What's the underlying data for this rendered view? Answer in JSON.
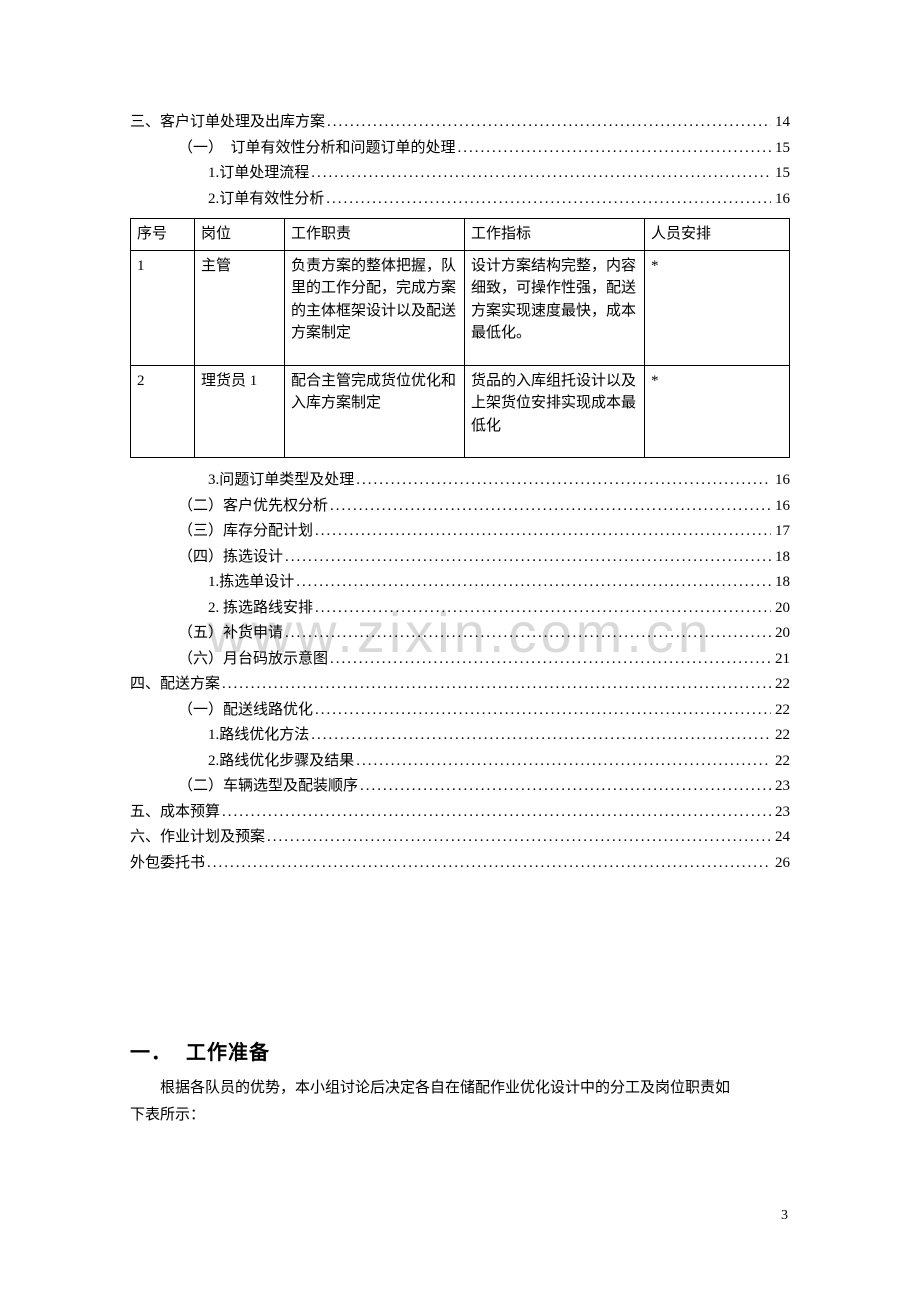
{
  "watermark": "www.zixin.com.cn",
  "toc_top": [
    {
      "indent": 0,
      "text": "三、客户订单处理及出库方案",
      "page": "14"
    },
    {
      "indent": 1,
      "text": "（一）　订单有效性分析和问题订单的处理 ",
      "page": "15"
    },
    {
      "indent": 2,
      "text": "1.订单处理流程",
      "page": "15"
    },
    {
      "indent": 2,
      "text": "2.订单有效性分析",
      "page": "16"
    }
  ],
  "table": {
    "columns": [
      "序号",
      "岗位",
      "工作职责",
      "工作指标",
      "人员安排"
    ],
    "rows": [
      {
        "seq": "1",
        "position": "主管",
        "duty": "负责方案的整体把握，队里的工作分配，完成方案的主体框架设计以及配送方案制定",
        "metric": "设计方案结构完整，内容细致，可操作性强，配送方案实现速度最快，成本最低化。",
        "person": "*"
      },
      {
        "seq": "2",
        "position": "理货员 1",
        "duty": "配合主管完成货位优化和入库方案制定",
        "metric": "货品的入库组托设计以及上架货位安排实现成本最低化",
        "person": "*"
      }
    ]
  },
  "toc_mid": [
    {
      "indent": 2,
      "text": "3.问题订单类型及处理",
      "page": "16"
    },
    {
      "indent": 1,
      "text": "（二）客户优先权分析 ",
      "page": "16"
    },
    {
      "indent": 1,
      "text": "（三）库存分配计划 ",
      "page": "17"
    },
    {
      "indent": 1,
      "text": "（四）拣选设计 ",
      "page": "18"
    },
    {
      "indent": 2,
      "text": "1.拣选单设计",
      "page": "18"
    },
    {
      "indent": 2,
      "text": "2. 拣选路线安排",
      "page": "20"
    },
    {
      "indent": 1,
      "text": "（五）补货申请 ",
      "page": "20"
    },
    {
      "indent": 1,
      "text": "（六）月台码放示意图 ",
      "page": "21"
    },
    {
      "indent": 0,
      "text": "四、配送方案",
      "page": "22"
    },
    {
      "indent": 1,
      "text": "（一）配送线路优化 ",
      "page": "22"
    },
    {
      "indent": 2,
      "text": "1.路线优化方法",
      "page": "22"
    },
    {
      "indent": 2,
      "text": "2.路线优化步骤及结果",
      "page": "22"
    },
    {
      "indent": 1,
      "text": "（二）车辆选型及配装顺序 ",
      "page": "23"
    },
    {
      "indent": 0,
      "text": "五、成本预算",
      "page": "23"
    },
    {
      "indent": 0,
      "text": "六、作业计划及预案",
      "page": "24"
    },
    {
      "indent": 0,
      "text": "外包委托书",
      "page": "26"
    }
  ],
  "heading": {
    "num": "一．",
    "title": "工作准备"
  },
  "body1": "根据各队员的优势，本小组讨论后决定各自在储配作业优化设计中的分工及岗位职责如",
  "body2": "下表所示：",
  "page_number": "3"
}
